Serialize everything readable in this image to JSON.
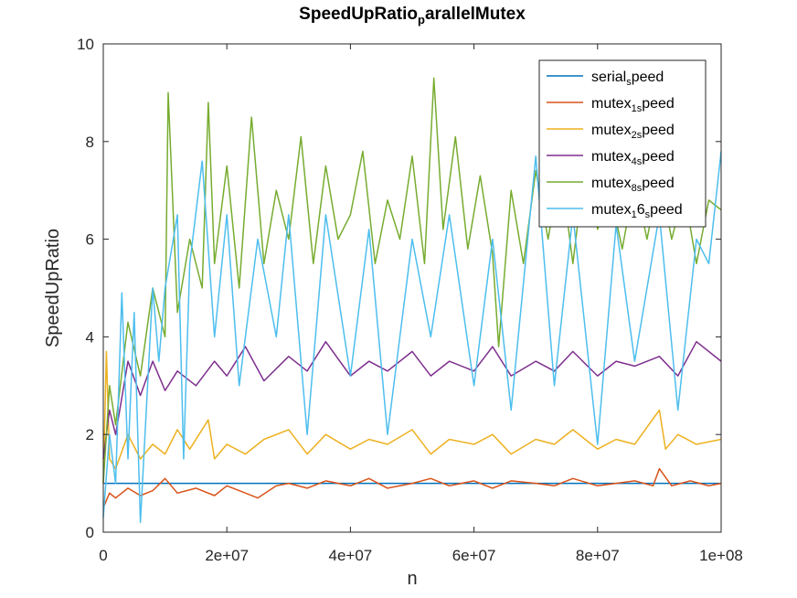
{
  "chart_data": {
    "type": "line",
    "title": "SpeedUpRatio",
    "title_sub": "p",
    "title_tail": "arallelMutex",
    "xlabel": "n",
    "ylabel": "SpeedUpRatio",
    "xlim": [
      0,
      100000000
    ],
    "ylim": [
      0,
      10
    ],
    "xticks": [
      0,
      20000000,
      40000000,
      60000000,
      80000000,
      100000000
    ],
    "xtick_labels": [
      "0",
      "2e+07",
      "4e+07",
      "6e+07",
      "8e+07",
      "1e+08"
    ],
    "yticks": [
      0,
      2,
      4,
      6,
      8,
      10
    ],
    "ytick_labels": [
      "0",
      "2",
      "4",
      "6",
      "8",
      "10"
    ],
    "grid": false,
    "legend_position": "top-right",
    "series": [
      {
        "name": "serial_speed",
        "legend": {
          "pre": "serial",
          "sub": "s",
          "post": "peed"
        },
        "color": "#0072BD",
        "x": [
          0,
          100000000
        ],
        "y": [
          1.0,
          1.0
        ]
      },
      {
        "name": "mutex1_speed",
        "legend": {
          "pre": "mutex",
          "sub": "1s",
          "post": "peed"
        },
        "color": "#D95319",
        "x": [
          0,
          1000000,
          2000000,
          4000000,
          6000000,
          8000000,
          10000000,
          12000000,
          15000000,
          18000000,
          20000000,
          22000000,
          25000000,
          28000000,
          30000000,
          33000000,
          36000000,
          40000000,
          43000000,
          46000000,
          50000000,
          53000000,
          56000000,
          60000000,
          63000000,
          66000000,
          70000000,
          73000000,
          76000000,
          80000000,
          83000000,
          86000000,
          89000000,
          90000000,
          92000000,
          95000000,
          98000000,
          100000000
        ],
        "y": [
          0.5,
          0.8,
          0.7,
          0.9,
          0.75,
          0.85,
          1.1,
          0.8,
          0.9,
          0.75,
          0.95,
          0.85,
          0.7,
          0.95,
          1.0,
          0.9,
          1.05,
          0.95,
          1.1,
          0.9,
          1.0,
          1.1,
          0.95,
          1.05,
          0.9,
          1.05,
          1.0,
          0.95,
          1.1,
          0.95,
          1.0,
          1.05,
          0.95,
          1.3,
          0.95,
          1.05,
          0.95,
          1.0
        ]
      },
      {
        "name": "mutex2_speed",
        "legend": {
          "pre": "mutex",
          "sub": "2s",
          "post": "peed"
        },
        "color": "#EDB120",
        "x": [
          0,
          500000,
          1000000,
          2000000,
          4000000,
          6000000,
          8000000,
          10000000,
          12000000,
          14000000,
          17000000,
          18000000,
          20000000,
          23000000,
          26000000,
          30000000,
          33000000,
          36000000,
          40000000,
          43000000,
          46000000,
          50000000,
          53000000,
          56000000,
          60000000,
          63000000,
          66000000,
          70000000,
          73000000,
          76000000,
          80000000,
          83000000,
          86000000,
          90000000,
          91000000,
          93000000,
          96000000,
          100000000
        ],
        "y": [
          1.0,
          3.7,
          1.5,
          1.3,
          2.0,
          1.5,
          1.8,
          1.6,
          2.1,
          1.7,
          2.3,
          1.5,
          1.8,
          1.6,
          1.9,
          2.1,
          1.6,
          2.0,
          1.7,
          1.9,
          1.8,
          2.1,
          1.6,
          1.9,
          1.8,
          2.0,
          1.6,
          1.9,
          1.8,
          2.1,
          1.7,
          1.9,
          1.8,
          2.5,
          1.7,
          2.0,
          1.8,
          1.9
        ]
      },
      {
        "name": "mutex4_speed",
        "legend": {
          "pre": "mutex",
          "sub": "4s",
          "post": "peed"
        },
        "color": "#7E2F8E",
        "x": [
          0,
          1000000,
          2000000,
          4000000,
          6000000,
          8000000,
          10000000,
          12000000,
          15000000,
          18000000,
          20000000,
          23000000,
          26000000,
          30000000,
          33000000,
          36000000,
          40000000,
          43000000,
          46000000,
          50000000,
          53000000,
          56000000,
          60000000,
          63000000,
          66000000,
          70000000,
          73000000,
          76000000,
          80000000,
          83000000,
          86000000,
          90000000,
          93000000,
          96000000,
          100000000
        ],
        "y": [
          1.5,
          2.5,
          2.0,
          3.5,
          2.8,
          3.5,
          2.9,
          3.3,
          3.0,
          3.5,
          3.2,
          3.8,
          3.1,
          3.6,
          3.3,
          3.9,
          3.2,
          3.5,
          3.3,
          3.7,
          3.2,
          3.5,
          3.3,
          3.8,
          3.2,
          3.5,
          3.3,
          3.7,
          3.2,
          3.5,
          3.4,
          3.6,
          3.2,
          3.9,
          3.5
        ]
      },
      {
        "name": "mutex8_speed",
        "legend": {
          "pre": "mutex",
          "sub": "8s",
          "post": "peed"
        },
        "color": "#77AC30",
        "x": [
          0,
          1000000,
          2000000,
          4000000,
          6000000,
          8000000,
          10000000,
          10500000,
          12000000,
          14000000,
          16000000,
          17000000,
          18000000,
          20000000,
          22000000,
          24000000,
          26000000,
          28000000,
          30000000,
          32000000,
          34000000,
          36000000,
          38000000,
          40000000,
          42000000,
          44000000,
          46000000,
          48000000,
          50000000,
          52000000,
          53500000,
          55000000,
          57000000,
          59000000,
          61000000,
          63000000,
          64000000,
          66000000,
          68000000,
          70000000,
          72000000,
          74000000,
          76000000,
          78000000,
          80000000,
          82000000,
          84000000,
          86000000,
          88000000,
          90000000,
          92000000,
          94000000,
          96000000,
          98000000,
          100000000
        ],
        "y": [
          1.0,
          3.0,
          2.2,
          4.3,
          3.2,
          5.0,
          4.0,
          9.0,
          4.5,
          6.0,
          5.0,
          8.8,
          5.5,
          7.5,
          5.0,
          8.5,
          5.5,
          7.0,
          6.0,
          8.1,
          5.5,
          7.5,
          6.0,
          6.5,
          7.8,
          5.5,
          6.8,
          6.0,
          7.7,
          5.5,
          9.3,
          6.2,
          8.1,
          5.8,
          7.3,
          5.7,
          3.8,
          7.0,
          5.5,
          7.4,
          6.0,
          7.5,
          5.5,
          7.6,
          6.2,
          7.0,
          5.8,
          7.2,
          6.0,
          7.3,
          6.0,
          7.0,
          5.5,
          6.8,
          6.6
        ]
      },
      {
        "name": "mutex16_speed",
        "legend": {
          "pre": "mutex",
          "sub": "1",
          "post": "6",
          "sub2": "s",
          "post2": "peed"
        },
        "color": "#4DBEEE",
        "x": [
          0,
          1000000,
          2000000,
          3000000,
          4000000,
          5000000,
          6000000,
          8000000,
          9000000,
          10000000,
          12000000,
          13000000,
          14000000,
          16000000,
          18000000,
          20000000,
          22000000,
          25000000,
          28000000,
          30000000,
          33000000,
          36000000,
          40000000,
          43000000,
          46000000,
          50000000,
          53000000,
          56000000,
          60000000,
          63000000,
          66000000,
          70000000,
          73000000,
          76000000,
          80000000,
          83000000,
          86000000,
          90000000,
          93000000,
          96000000,
          98000000,
          100000000
        ],
        "y": [
          0.3,
          2.0,
          1.0,
          4.9,
          1.5,
          4.5,
          0.2,
          5.0,
          3.5,
          5.0,
          6.5,
          1.5,
          5.5,
          7.6,
          4.0,
          6.5,
          3.0,
          6.0,
          4.0,
          6.5,
          2.0,
          6.5,
          3.2,
          6.2,
          2.0,
          6.0,
          4.0,
          6.5,
          3.0,
          6.0,
          2.5,
          7.7,
          3.0,
          6.5,
          1.8,
          6.3,
          3.5,
          6.5,
          2.5,
          6.0,
          5.5,
          7.8
        ]
      }
    ]
  }
}
